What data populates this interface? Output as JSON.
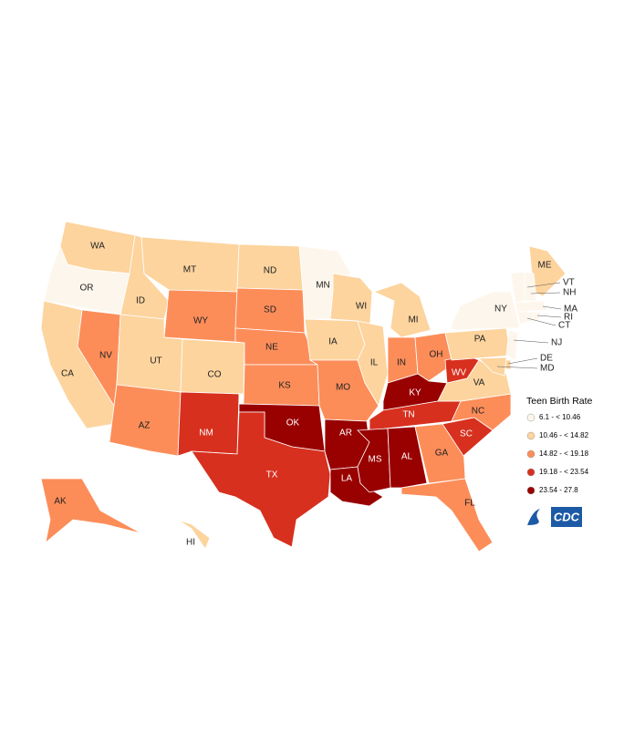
{
  "legend": {
    "title": "Teen Birth Rate",
    "classes": [
      {
        "label": "6.1 - < 10.46",
        "color": "#fdf6ec"
      },
      {
        "label": "10.46 - < 14.82",
        "color": "#fdd49e"
      },
      {
        "label": "14.82 - < 19.18",
        "color": "#fc8d59"
      },
      {
        "label": "19.18 - < 23.54",
        "color": "#d7301f"
      },
      {
        "label": "23.54 - 27.8",
        "color": "#990000"
      }
    ]
  },
  "logo": "CDC",
  "states": [
    {
      "label": "WA",
      "class": 1
    },
    {
      "label": "OR",
      "class": 0
    },
    {
      "label": "CA",
      "class": 1
    },
    {
      "label": "NV",
      "class": 2
    },
    {
      "label": "ID",
      "class": 1
    },
    {
      "label": "MT",
      "class": 1
    },
    {
      "label": "WY",
      "class": 2
    },
    {
      "label": "UT",
      "class": 1
    },
    {
      "label": "CO",
      "class": 1
    },
    {
      "label": "AZ",
      "class": 2
    },
    {
      "label": "NM",
      "class": 3
    },
    {
      "label": "ND",
      "class": 1
    },
    {
      "label": "SD",
      "class": 2
    },
    {
      "label": "NE",
      "class": 2
    },
    {
      "label": "KS",
      "class": 2
    },
    {
      "label": "OK",
      "class": 4
    },
    {
      "label": "TX",
      "class": 3
    },
    {
      "label": "MN",
      "class": 0
    },
    {
      "label": "IA",
      "class": 1
    },
    {
      "label": "MO",
      "class": 2
    },
    {
      "label": "AR",
      "class": 4
    },
    {
      "label": "LA",
      "class": 4
    },
    {
      "label": "WI",
      "class": 1
    },
    {
      "label": "IL",
      "class": 1
    },
    {
      "label": "MI",
      "class": 1
    },
    {
      "label": "IN",
      "class": 2
    },
    {
      "label": "OH",
      "class": 2
    },
    {
      "label": "KY",
      "class": 4
    },
    {
      "label": "TN",
      "class": 3
    },
    {
      "label": "MS",
      "class": 4
    },
    {
      "label": "AL",
      "class": 4
    },
    {
      "label": "GA",
      "class": 2
    },
    {
      "label": "FL",
      "class": 2
    },
    {
      "label": "SC",
      "class": 3
    },
    {
      "label": "NC",
      "class": 2
    },
    {
      "label": "VA",
      "class": 1
    },
    {
      "label": "WV",
      "class": 3
    },
    {
      "label": "PA",
      "class": 1
    },
    {
      "label": "NY",
      "class": 0
    },
    {
      "label": "ME",
      "class": 1
    },
    {
      "label": "VT",
      "class": 0
    },
    {
      "label": "NH",
      "class": 0
    },
    {
      "label": "MA",
      "class": 0
    },
    {
      "label": "CT",
      "class": 0
    },
    {
      "label": "RI",
      "class": 0
    },
    {
      "label": "NJ",
      "class": 0
    },
    {
      "label": "DE",
      "class": 1
    },
    {
      "label": "MD",
      "class": 1
    },
    {
      "label": "AK",
      "class": 2
    },
    {
      "label": "HI",
      "class": 1
    }
  ]
}
